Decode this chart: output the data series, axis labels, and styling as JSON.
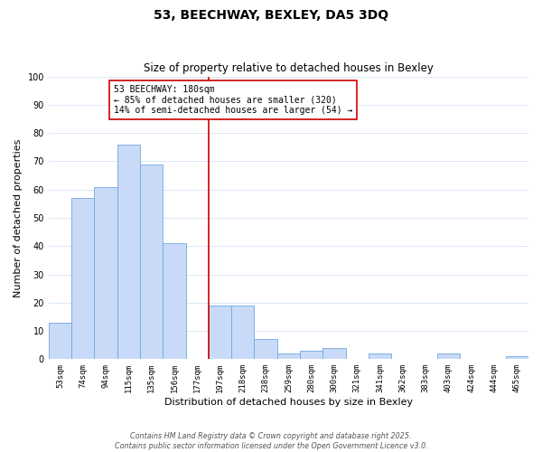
{
  "title": "53, BEECHWAY, BEXLEY, DA5 3DQ",
  "subtitle": "Size of property relative to detached houses in Bexley",
  "xlabel": "Distribution of detached houses by size in Bexley",
  "ylabel": "Number of detached properties",
  "bar_labels": [
    "53sqm",
    "74sqm",
    "94sqm",
    "115sqm",
    "135sqm",
    "156sqm",
    "177sqm",
    "197sqm",
    "218sqm",
    "238sqm",
    "259sqm",
    "280sqm",
    "300sqm",
    "321sqm",
    "341sqm",
    "362sqm",
    "383sqm",
    "403sqm",
    "424sqm",
    "444sqm",
    "465sqm"
  ],
  "bar_values": [
    13,
    57,
    61,
    76,
    69,
    41,
    0,
    19,
    19,
    7,
    2,
    3,
    4,
    0,
    2,
    0,
    0,
    2,
    0,
    0,
    1
  ],
  "bar_color": "#c9daf8",
  "bar_edge_color": "#6fa8dc",
  "vline_x_idx": 6,
  "vline_color": "#cc0000",
  "annotation_title": "53 BEECHWAY: 180sqm",
  "annotation_line1": "← 85% of detached houses are smaller (320)",
  "annotation_line2": "14% of semi-detached houses are larger (54) →",
  "annotation_box_color": "#ffffff",
  "annotation_box_edge": "#cc0000",
  "ylim": [
    0,
    100
  ],
  "yticks": [
    0,
    10,
    20,
    30,
    40,
    50,
    60,
    70,
    80,
    90,
    100
  ],
  "background_color": "#ffffff",
  "grid_color": "#dce9f8",
  "footer1": "Contains HM Land Registry data © Crown copyright and database right 2025.",
  "footer2": "Contains public sector information licensed under the Open Government Licence v3.0."
}
